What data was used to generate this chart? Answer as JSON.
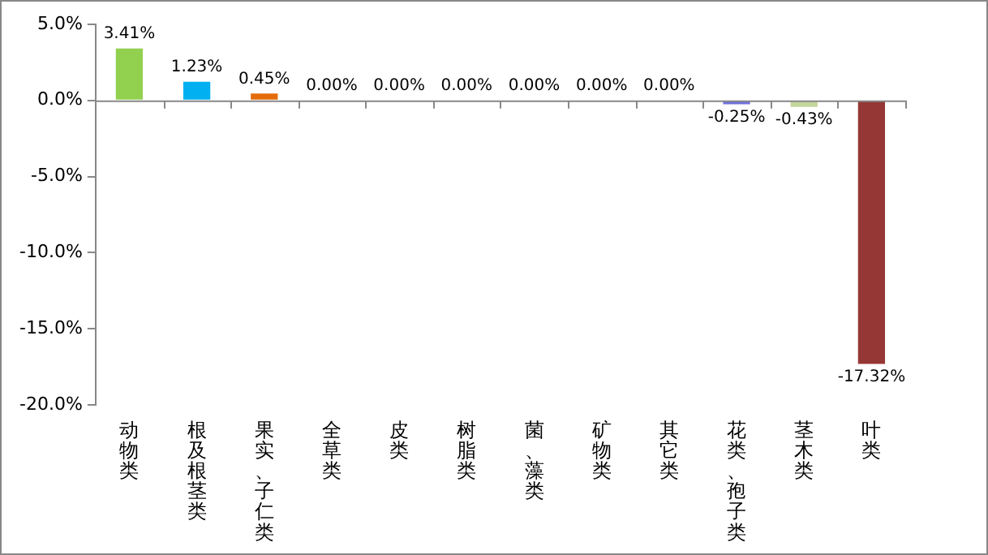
{
  "chart_data": {
    "type": "bar",
    "categories": [
      "动物类",
      "根及根茎类",
      "果实、子仁类",
      "全草类",
      "皮类",
      "树脂类",
      "菌、藻类",
      "矿物类",
      "其它类",
      "花类、孢子类",
      "茎木类",
      "叶类"
    ],
    "values": [
      3.41,
      1.23,
      0.45,
      0,
      0,
      0,
      0,
      0,
      0,
      -0.25,
      -0.43,
      -17.32
    ],
    "colors": [
      "#92d050",
      "#00b0f0",
      "#e46c0a",
      "#92d050",
      "#00b0f0",
      "#e46c0a",
      "#92d050",
      "#00b0f0",
      "#e46c0a",
      "#7070e0",
      "#c3d69b",
      "#953735"
    ],
    "value_labels": [
      "3.41%",
      "1.23%",
      "0.45%",
      "0.00%",
      "0.00%",
      "0.00%",
      "0.00%",
      "0.00%",
      "0.00%",
      "-0.25%",
      "-0.43%",
      "-17.32%"
    ],
    "ylim": [
      -20,
      5
    ],
    "yticks": [
      {
        "value": 5,
        "label": "5.0%"
      },
      {
        "value": 0,
        "label": "0.0%"
      },
      {
        "value": -5,
        "label": "-5.0%"
      },
      {
        "value": -10,
        "label": "-10.0%"
      },
      {
        "value": -15,
        "label": "-15.0%"
      },
      {
        "value": -20,
        "label": "-20.0%"
      }
    ],
    "legend": false
  }
}
